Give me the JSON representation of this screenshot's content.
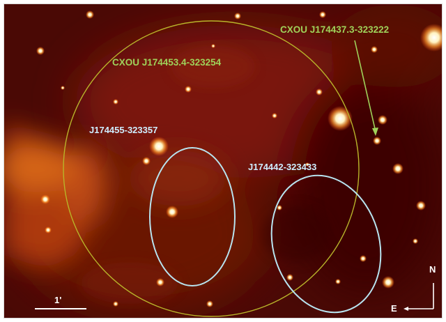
{
  "labels": {
    "cxou_large": "CXOU J174453.4-323254",
    "cxou_small": "CXOU J174437.3-323222",
    "src_left": "J174455-323357",
    "src_right": "J174442-323433",
    "scale": "1'",
    "north": "N",
    "east": "E"
  },
  "colors": {
    "circle": "#b8b42a",
    "ellipse": "#b8e4f0",
    "label_green": "#9fd25a",
    "label_cyan": "#cfeeff",
    "sky_dark": "#3a0603",
    "sky_glow": "#e06f1a"
  }
}
